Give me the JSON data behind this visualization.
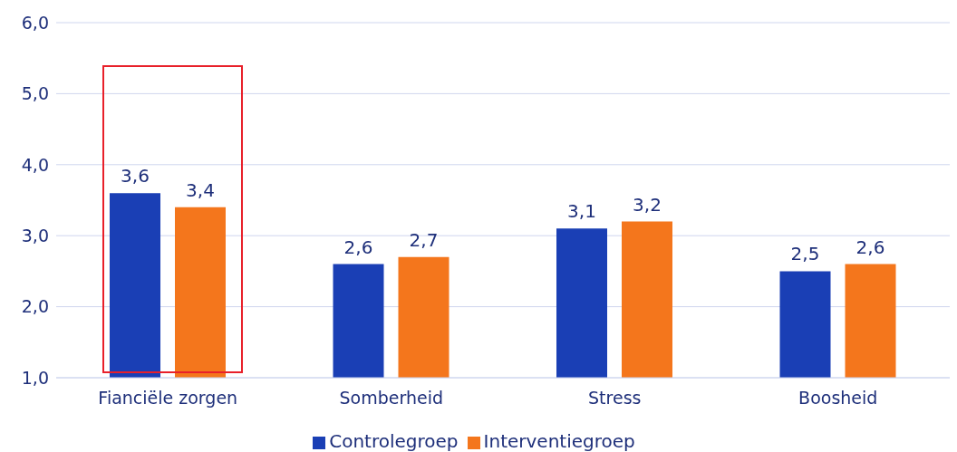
{
  "chart_data": {
    "type": "bar",
    "categories": [
      "Fianciële zorgen",
      "Somberheid",
      "Stress",
      "Boosheid"
    ],
    "series": [
      {
        "name": "Controlegroep",
        "color": "#1a3fb5",
        "values": [
          3.6,
          2.6,
          3.1,
          2.5
        ],
        "value_labels": [
          "3,6",
          "2,6",
          "3,1",
          "2,5"
        ]
      },
      {
        "name": "Interventiegroep",
        "color": "#f4761c",
        "values": [
          3.4,
          2.7,
          3.2,
          2.6
        ],
        "value_labels": [
          "3,4",
          "2,7",
          "3,2",
          "2,6"
        ]
      }
    ],
    "ylim": [
      1,
      6
    ],
    "yticks": [
      {
        "value": 1,
        "label": "1,0"
      },
      {
        "value": 2,
        "label": "2,0"
      },
      {
        "value": 3,
        "label": "3,0"
      },
      {
        "value": 4,
        "label": "4,0"
      },
      {
        "value": 5,
        "label": "5,0"
      },
      {
        "value": 6,
        "label": "6,0"
      }
    ],
    "grid": "y",
    "legend": "bottom"
  }
}
